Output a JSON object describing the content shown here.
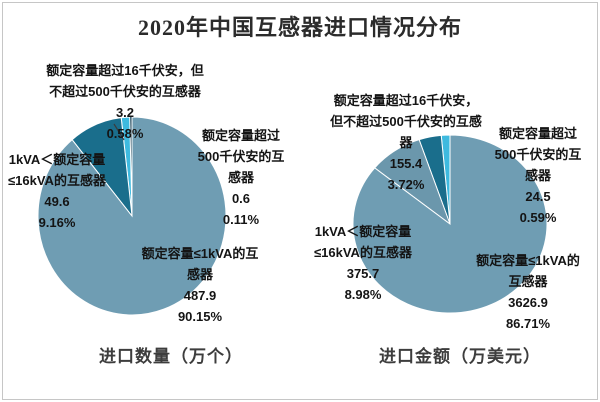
{
  "title": "2020年中国互感器进口情况分布",
  "chart_data": [
    {
      "type": "pie",
      "title": "进口数量（万个）",
      "unit": "万个",
      "legend": "none",
      "categories": [
        "额定容量≤1kVA的互感器",
        "1kVA＜额定容量≤16kVA的互感器",
        "额定容量超过16千伏安，但不超过500千伏安的互感器",
        "额定容量超过500千伏安的互感器"
      ],
      "values": [
        487.9,
        49.6,
        3.2,
        0.6
      ],
      "percents": [
        90.15,
        9.16,
        0.58,
        0.11
      ],
      "colors": [
        "#6f9db3",
        "#1a6e8c",
        "#3ebadf",
        "#143f54"
      ],
      "callouts": {
        "under1": {
          "text": "额定容量≤1kVA的互\n感器\n487.9\n90.15%"
        },
        "k1to16": {
          "text": "1kVA＜额定容量\n≤16kVA的互感器\n49.6\n9.16%"
        },
        "k16to500": {
          "text": "额定容量超过16千伏安，但\n不超过500千伏安的互感器\n3.2\n0.58%"
        },
        "over500": {
          "text": "额定容量超过\n500千伏安的互\n感器\n0.6\n0.11%"
        }
      }
    },
    {
      "type": "pie",
      "title": "进口金额（万美元）",
      "unit": "万美元",
      "legend": "none",
      "categories": [
        "额定容量≤1kVA的互感器",
        "1kVA＜额定容量≤16kVA的互感器",
        "额定容量超过16千伏安，但不超过500千伏安的互感器",
        "额定容量超过500千伏安的互感器"
      ],
      "values": [
        3626.9,
        375.7,
        155.4,
        24.5
      ],
      "percents": [
        86.71,
        8.98,
        3.72,
        0.59
      ],
      "colors": [
        "#6f9db3",
        "#6b97ac",
        "#1a6e8c",
        "#3ebadf"
      ],
      "callouts": {
        "under1": {
          "text": "额定容量≤1kVA的\n互感器\n3626.9\n86.71%"
        },
        "k1to16": {
          "text": "1kVA＜额定容量\n≤16kVA的互感器\n375.7\n8.98%"
        },
        "k16to500": {
          "text": "额定容量超过16千伏安，\n但不超过500千伏安的互感\n器\n155.4\n3.72%"
        },
        "over500": {
          "text": "额定容量超过\n500千伏安的互\n感器\n24.5\n0.59%"
        }
      }
    }
  ]
}
